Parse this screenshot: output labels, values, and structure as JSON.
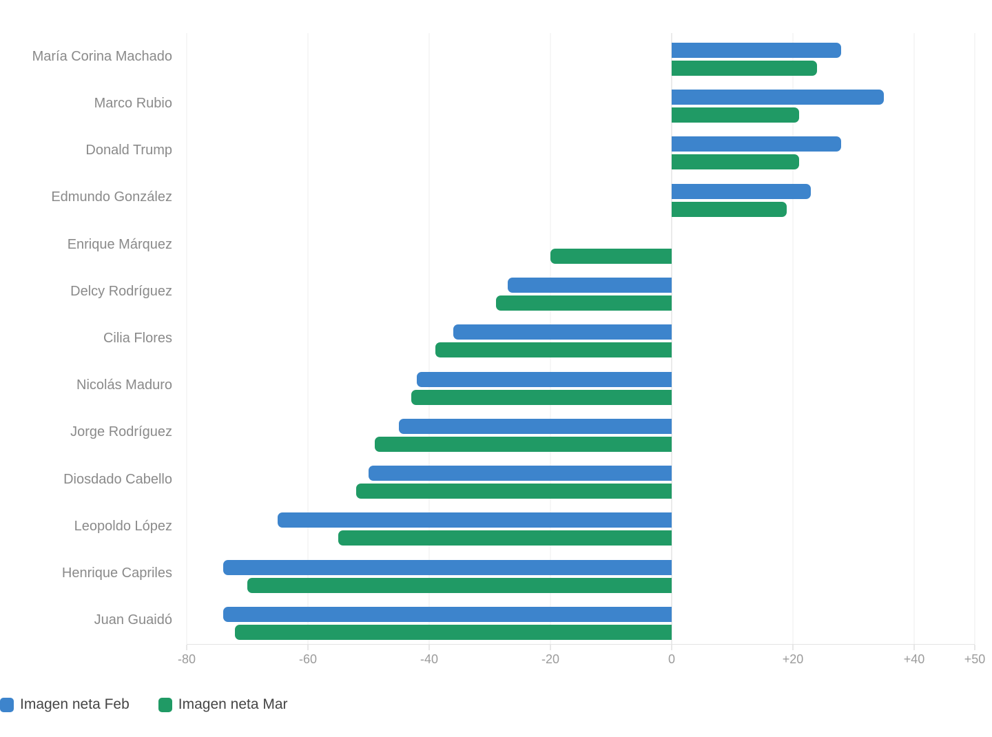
{
  "chart_data": {
    "type": "bar",
    "orientation": "horizontal",
    "title": "",
    "xlabel": "",
    "ylabel": "",
    "grid": true,
    "legend_position": "bottom-left",
    "categories": [
      "María Corina Machado",
      "Marco Rubio",
      "Donald Trump",
      "Edmundo González",
      "Enrique Márquez",
      "Delcy Rodríguez",
      "Cilia Flores",
      "Nicolás Maduro",
      "Jorge Rodríguez",
      "Diosdado Cabello",
      "Leopoldo López",
      "Henrique Capriles",
      "Juan Guaidó"
    ],
    "series": [
      {
        "key": "feb",
        "name": "Imagen neta Feb",
        "color": "#3d84cc",
        "values": [
          28,
          35,
          28,
          23,
          null,
          -27,
          -36,
          -42,
          -45,
          -50,
          -65,
          -74,
          -74
        ]
      },
      {
        "key": "mar",
        "name": "Imagen neta Mar",
        "color": "#209a65",
        "values": [
          24,
          21,
          21,
          19,
          -20,
          -29,
          -39,
          -43,
          -49,
          -52,
          -55,
          -70,
          -72
        ]
      }
    ],
    "x_axis": {
      "min": -80,
      "max": 50,
      "zero_value": 0,
      "ticks": [
        {
          "value": -80,
          "label": "-80"
        },
        {
          "value": -60,
          "label": "-60"
        },
        {
          "value": -40,
          "label": "-40"
        },
        {
          "value": -20,
          "label": "-20"
        },
        {
          "value": 0,
          "label": "0"
        },
        {
          "value": 20,
          "label": "+20"
        },
        {
          "value": 40,
          "label": "+40"
        },
        {
          "value": 50,
          "label": "+50"
        }
      ]
    }
  },
  "colors": {
    "feb_bar": "#3d84cc",
    "mar_bar": "#209a65",
    "gridline": "#ececec",
    "zero_line": "#d4d4d4",
    "category_label": "#8a8a8a",
    "axis_label": "#9b9b9b",
    "legend_label": "#454545"
  }
}
